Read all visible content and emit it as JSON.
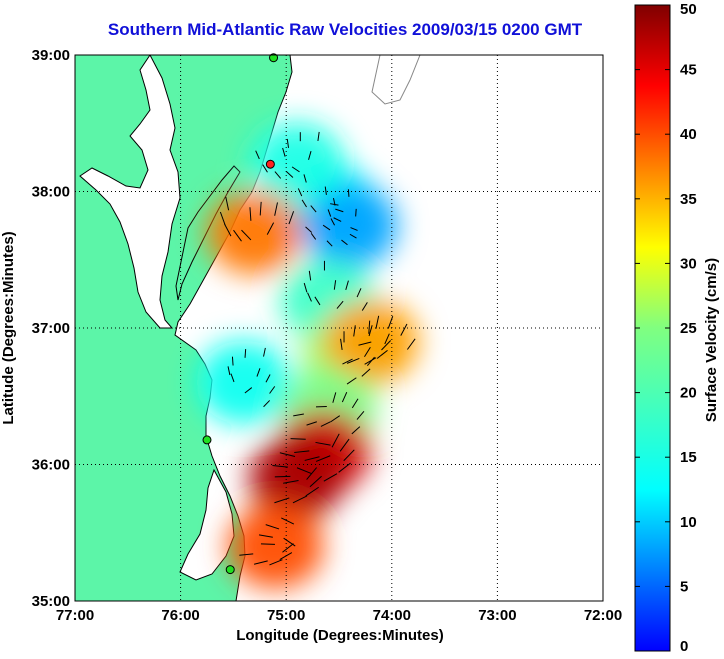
{
  "chart_data": {
    "type": "heatmap",
    "title": "Southern Mid-Atlantic Raw Velocities 2009/03/15 0200 GMT",
    "xlabel": "Longitude (Degrees:Minutes)",
    "ylabel": "Latitude (Degrees:Minutes)",
    "colorbar_label": "Surface Velocity (cm/s)",
    "x_ticks": [
      "77:00",
      "76:00",
      "75:00",
      "74:00",
      "73:00",
      "72:00"
    ],
    "y_ticks": [
      "35:00",
      "36:00",
      "37:00",
      "38:00",
      "39:00"
    ],
    "colorbar_ticks": [
      "0",
      "5",
      "10",
      "15",
      "20",
      "25",
      "30",
      "35",
      "40",
      "45",
      "50"
    ],
    "xlim": [
      -77,
      -72
    ],
    "ylim": [
      35,
      39
    ],
    "clim": [
      0,
      50
    ],
    "grid": true,
    "colormap": "jet",
    "land_color": "#5cf5a8",
    "vector_color": "#000000",
    "stations": [
      {
        "lon": -75.12,
        "lat": 38.98
      },
      {
        "lon": -75.15,
        "lat": 38.2
      },
      {
        "lon": -75.75,
        "lat": 36.18
      },
      {
        "lon": -75.53,
        "lat": 35.23
      }
    ],
    "velocity_regions": [
      {
        "lon": -74.6,
        "lat": 37.9,
        "speed": 12
      },
      {
        "lon": -74.4,
        "lat": 37.75,
        "speed": 8
      },
      {
        "lon": -74.9,
        "lat": 38.2,
        "speed": 15
      },
      {
        "lon": -75.3,
        "lat": 37.7,
        "speed": 38
      },
      {
        "lon": -74.6,
        "lat": 37.2,
        "speed": 18
      },
      {
        "lon": -75.4,
        "lat": 36.6,
        "speed": 14
      },
      {
        "lon": -74.4,
        "lat": 36.8,
        "speed": 26
      },
      {
        "lon": -74.2,
        "lat": 36.9,
        "speed": 36
      },
      {
        "lon": -74.6,
        "lat": 36.4,
        "speed": 24
      },
      {
        "lon": -74.65,
        "lat": 36.1,
        "speed": 46
      },
      {
        "lon": -74.9,
        "lat": 35.9,
        "speed": 48
      },
      {
        "lon": -75.1,
        "lat": 35.4,
        "speed": 40
      }
    ]
  }
}
